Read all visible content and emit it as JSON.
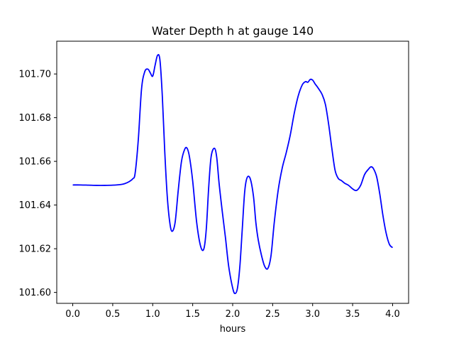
{
  "chart_data": {
    "type": "line",
    "title": "Water Depth h at gauge 140",
    "xlabel": "hours",
    "ylabel": "",
    "xlim": [
      -0.2,
      4.2
    ],
    "ylim": [
      101.595,
      101.715
    ],
    "grid": false,
    "xticks": [
      0.0,
      0.5,
      1.0,
      1.5,
      2.0,
      2.5,
      3.0,
      3.5,
      4.0
    ],
    "xtick_labels": [
      "0.0",
      "0.5",
      "1.0",
      "1.5",
      "2.0",
      "2.5",
      "3.0",
      "3.5",
      "4.0"
    ],
    "yticks": [
      101.6,
      101.62,
      101.64,
      101.66,
      101.68,
      101.7
    ],
    "ytick_labels": [
      "101.60",
      "101.62",
      "101.64",
      "101.66",
      "101.68",
      "101.70"
    ],
    "series": [
      {
        "color": "#0000ff",
        "x": [
          0.0,
          0.1,
          0.2,
          0.3,
          0.4,
          0.5,
          0.6,
          0.65,
          0.7,
          0.75,
          0.78,
          0.82,
          0.86,
          0.9,
          0.94,
          0.97,
          1.0,
          1.03,
          1.06,
          1.09,
          1.12,
          1.15,
          1.18,
          1.21,
          1.24,
          1.28,
          1.32,
          1.36,
          1.4,
          1.43,
          1.46,
          1.5,
          1.55,
          1.6,
          1.64,
          1.67,
          1.7,
          1.73,
          1.77,
          1.8,
          1.83,
          1.87,
          1.91,
          1.95,
          2.0,
          2.03,
          2.06,
          2.09,
          2.12,
          2.15,
          2.18,
          2.22,
          2.26,
          2.29,
          2.32,
          2.36,
          2.4,
          2.44,
          2.48,
          2.52,
          2.57,
          2.62,
          2.67,
          2.72,
          2.77,
          2.82,
          2.87,
          2.91,
          2.94,
          2.97,
          3.0,
          3.03,
          3.07,
          3.12,
          3.16,
          3.2,
          3.24,
          3.28,
          3.32,
          3.36,
          3.4,
          3.45,
          3.5,
          3.55,
          3.6,
          3.65,
          3.7,
          3.73,
          3.76,
          3.8,
          3.84,
          3.88,
          3.92,
          3.96,
          4.0
        ],
        "y": [
          101.6492,
          101.6492,
          101.6491,
          101.649,
          101.649,
          101.6491,
          101.6494,
          101.6498,
          101.6506,
          101.652,
          101.6545,
          101.67,
          101.693,
          101.701,
          101.7022,
          101.7005,
          101.699,
          101.704,
          101.7085,
          101.7065,
          101.69,
          101.665,
          101.645,
          101.633,
          101.628,
          101.632,
          101.647,
          101.66,
          101.6655,
          101.666,
          101.662,
          101.651,
          101.632,
          101.621,
          101.62,
          101.629,
          101.648,
          101.662,
          101.666,
          101.662,
          101.65,
          101.637,
          101.625,
          101.612,
          101.602,
          101.5995,
          101.602,
          101.612,
          101.629,
          101.646,
          101.6525,
          101.652,
          101.644,
          101.632,
          101.624,
          101.617,
          101.612,
          101.611,
          101.617,
          101.632,
          101.647,
          101.657,
          101.664,
          101.672,
          101.682,
          101.69,
          101.695,
          101.6965,
          101.6962,
          101.6975,
          101.6972,
          101.6955,
          101.6935,
          101.6905,
          101.686,
          101.677,
          101.666,
          101.656,
          101.6522,
          101.6512,
          101.65,
          101.649,
          101.6474,
          101.6467,
          101.649,
          101.654,
          101.6565,
          101.6575,
          101.6567,
          101.653,
          101.645,
          101.635,
          101.627,
          101.622,
          101.6205
        ]
      }
    ]
  }
}
